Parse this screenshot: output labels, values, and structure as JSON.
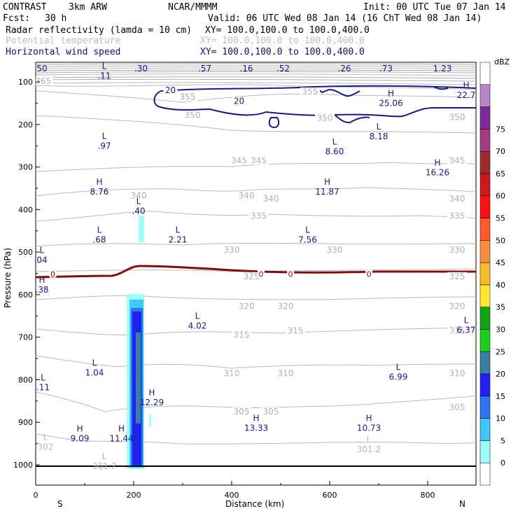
{
  "header": {
    "title_left": "CONTRAST",
    "model": "3km ARW",
    "org": "NCAR/MMMM",
    "init": "Init: 00 UTC Tue 07 Jan 14",
    "fcst_label": "Fcst:",
    "fcst_value": "30 h",
    "valid": "Valid: 06 UTC Wed 08 Jan 14 (16 ChT Wed 08 Jan 14)",
    "fields": [
      {
        "name": "Radar reflectivity (lamda = 10 cm)",
        "xy": "XY= 100.0,100.0 to 100.0,400.0",
        "style": "black"
      },
      {
        "name": "Potential temperature",
        "xy": "XY= 100.0,100.0 to 100.0,400.0",
        "style": "gray"
      },
      {
        "name": "Horizontal wind speed",
        "xy": "XY= 100.0,100.0 to 100.0,400.0",
        "style": "navy"
      }
    ]
  },
  "chart_data": {
    "type": "cross-section",
    "xlabel": "Distance (km)",
    "ylabel": "Pressure (hPa)",
    "xlim": [
      0,
      900
    ],
    "ylim": [
      1050,
      60
    ],
    "x_ticks": [
      "0",
      "200",
      "400",
      "600",
      "800"
    ],
    "y_ticks": [
      "100",
      "200",
      "300",
      "400",
      "500",
      "600",
      "700",
      "800",
      "900",
      "1000"
    ],
    "x_start_label": "S",
    "x_end_label": "N",
    "colorbar": {
      "units": "dBZ",
      "levels": [
        "0",
        "5",
        "10",
        "15",
        "20",
        "25",
        "30",
        "35",
        "40",
        "45",
        "50",
        "55",
        "60",
        "65",
        "70",
        "75"
      ],
      "colors": [
        "#ffffff",
        "#9ffff8",
        "#3fc8f8",
        "#2f73f0",
        "#2222ee",
        "#3d7fa2",
        "#1dcf1d",
        "#12a412",
        "#ffe733",
        "#f5bb2a",
        "#f58e40",
        "#ff5a2a",
        "#ff1010",
        "#cc1818",
        "#9e2a2a",
        "#a43c84",
        "#7a2a9b",
        "#b986c8",
        "#ffffff"
      ]
    },
    "reflectivity_core": {
      "x_km": [
        187,
        212
      ],
      "p_top_hPa": 605,
      "p_bottom_hPa": 1010,
      "max_dBZ": 25
    },
    "theta_isolines": [
      {
        "level": "365",
        "label_x_km": 15,
        "p_hPa": 103
      },
      {
        "level": "355",
        "label_x_km": 310,
        "p_hPa": 140
      },
      {
        "level": "355",
        "label_x_km": 560,
        "p_hPa": 128
      },
      {
        "level": "350",
        "label_x_km": 320,
        "p_hPa": 183
      },
      {
        "level": "350",
        "label_x_km": 590,
        "p_hPa": 190
      },
      {
        "level": "350",
        "label_x_km": 860,
        "p_hPa": 188
      },
      {
        "level": "345",
        "label_x_km": 415,
        "p_hPa": 290
      },
      {
        "level": "345",
        "label_x_km": 455,
        "p_hPa": 290
      },
      {
        "level": "345",
        "label_x_km": 860,
        "p_hPa": 290
      },
      {
        "level": "340",
        "label_x_km": 210,
        "p_hPa": 372
      },
      {
        "level": "340",
        "label_x_km": 430,
        "p_hPa": 372
      },
      {
        "level": "340",
        "label_x_km": 480,
        "p_hPa": 380
      },
      {
        "level": "340",
        "label_x_km": 860,
        "p_hPa": 380
      },
      {
        "level": "335",
        "label_x_km": 455,
        "p_hPa": 420
      },
      {
        "level": "335",
        "label_x_km": 860,
        "p_hPa": 420
      },
      {
        "level": "330",
        "label_x_km": 400,
        "p_hPa": 500
      },
      {
        "level": "330",
        "label_x_km": 610,
        "p_hPa": 500
      },
      {
        "level": "330",
        "label_x_km": 860,
        "p_hPa": 500
      },
      {
        "level": "325",
        "label_x_km": 440,
        "p_hPa": 562
      },
      {
        "level": "325",
        "label_x_km": 860,
        "p_hPa": 562
      },
      {
        "level": "320",
        "label_x_km": 430,
        "p_hPa": 632
      },
      {
        "level": "320",
        "label_x_km": 510,
        "p_hPa": 632
      },
      {
        "level": "320",
        "label_x_km": 860,
        "p_hPa": 632
      },
      {
        "level": "315",
        "label_x_km": 420,
        "p_hPa": 700
      },
      {
        "level": "315",
        "label_x_km": 530,
        "p_hPa": 690
      },
      {
        "level": "315",
        "label_x_km": 860,
        "p_hPa": 690
      },
      {
        "level": "310",
        "label_x_km": 400,
        "p_hPa": 790
      },
      {
        "level": "310",
        "label_x_km": 510,
        "p_hPa": 790
      },
      {
        "level": "310",
        "label_x_km": 860,
        "p_hPa": 790
      },
      {
        "level": "305",
        "label_x_km": 420,
        "p_hPa": 880
      },
      {
        "level": "305",
        "label_x_km": 480,
        "p_hPa": 880
      },
      {
        "level": "305",
        "label_x_km": 860,
        "p_hPa": 870
      }
    ],
    "theta_extrema": [
      {
        "type": "L",
        "value": "302",
        "x_km": 20,
        "p_hPa": 965
      },
      {
        "type": "L",
        "value": "301.7",
        "x_km": 140,
        "p_hPa": 1010
      },
      {
        "type": "L",
        "value": "301.2",
        "x_km": 680,
        "p_hPa": 970
      }
    ],
    "wind_contour_labels": [
      {
        "value": "20",
        "x_km": 275,
        "p_hPa": 125
      },
      {
        "value": "20",
        "x_km": 415,
        "p_hPa": 150
      }
    ],
    "wind_extrema": [
      {
        "type": "L",
        "value": "50",
        "x_km": 10,
        "p_hPa": 75
      },
      {
        "type": "L",
        "value": ".30",
        "x_km": 215,
        "p_hPa": 75
      },
      {
        "type": "L",
        "value": ".57",
        "x_km": 345,
        "p_hPa": 75
      },
      {
        "type": "L",
        "value": ".16",
        "x_km": 430,
        "p_hPa": 75
      },
      {
        "type": "L",
        "value": ".52",
        "x_km": 505,
        "p_hPa": 75
      },
      {
        "type": "L",
        "value": ".26",
        "x_km": 630,
        "p_hPa": 75
      },
      {
        "type": "L",
        "value": ".73",
        "x_km": 715,
        "p_hPa": 75
      },
      {
        "type": "L",
        "value": "1.23",
        "x_km": 830,
        "p_hPa": 75
      },
      {
        "type": "L",
        "value": ".11",
        "x_km": 140,
        "p_hPa": 93
      },
      {
        "type": "H",
        "value": "25.06",
        "x_km": 725,
        "p_hPa": 157
      },
      {
        "type": "H",
        "value": "22.7",
        "x_km": 880,
        "p_hPa": 138
      },
      {
        "type": "L",
        "value": ".97",
        "x_km": 140,
        "p_hPa": 257
      },
      {
        "type": "L",
        "value": "8.60",
        "x_km": 610,
        "p_hPa": 270
      },
      {
        "type": "L",
        "value": "8.18",
        "x_km": 700,
        "p_hPa": 235
      },
      {
        "type": "H",
        "value": "16.26",
        "x_km": 820,
        "p_hPa": 320
      },
      {
        "type": "H",
        "value": "8.76",
        "x_km": 130,
        "p_hPa": 365
      },
      {
        "type": "H",
        "value": "11.87",
        "x_km": 595,
        "p_hPa": 365
      },
      {
        "type": "L",
        "value": ".40",
        "x_km": 210,
        "p_hPa": 410
      },
      {
        "type": "L",
        "value": ".68",
        "x_km": 130,
        "p_hPa": 478
      },
      {
        "type": "L",
        "value": "2.21",
        "x_km": 290,
        "p_hPa": 478
      },
      {
        "type": "L",
        "value": "7.56",
        "x_km": 555,
        "p_hPa": 478
      },
      {
        "type": "L",
        "value": "04",
        "x_km": 10,
        "p_hPa": 525
      },
      {
        "type": "H",
        "value": ".38",
        "x_km": 10,
        "p_hPa": 595
      },
      {
        "type": "L",
        "value": "4.02",
        "x_km": 330,
        "p_hPa": 680
      },
      {
        "type": "L",
        "value": "6.37",
        "x_km": 880,
        "p_hPa": 690
      },
      {
        "type": "L",
        "value": "1.04",
        "x_km": 120,
        "p_hPa": 790
      },
      {
        "type": "L",
        "value": "6.99",
        "x_km": 740,
        "p_hPa": 800
      },
      {
        "type": "L",
        "value": ".11",
        "x_km": 15,
        "p_hPa": 825
      },
      {
        "type": "H",
        "value": "12.29",
        "x_km": 237,
        "p_hPa": 860
      },
      {
        "type": "H",
        "value": "13.33",
        "x_km": 450,
        "p_hPa": 920
      },
      {
        "type": "H",
        "value": "10.73",
        "x_km": 680,
        "p_hPa": 920
      },
      {
        "type": "H",
        "value": "9.09",
        "x_km": 90,
        "p_hPa": 945
      },
      {
        "type": "H",
        "value": "11.44",
        "x_km": 175,
        "p_hPa": 945
      }
    ],
    "zero_isotherm_labels": [
      "0",
      "0",
      "0",
      "0"
    ],
    "zero_isotherm_p_hPa": 555,
    "surface_p_hPa": 1005
  }
}
